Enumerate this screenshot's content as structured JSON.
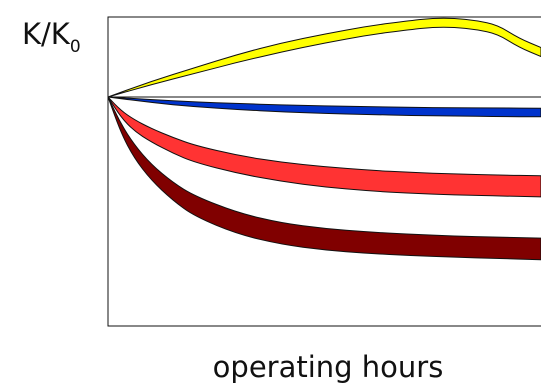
{
  "chart_data": {
    "type": "area",
    "ylabel_main": "K/K",
    "ylabel_sub": "0",
    "xlabel": "operating hours",
    "xlim": [
      0,
      100
    ],
    "ylim": [
      0,
      100
    ],
    "grid": false,
    "series": [
      {
        "color": "#ffff00",
        "x": [
          0,
          10,
          20,
          30,
          40,
          50,
          60,
          70,
          75,
          80,
          85,
          90,
          95,
          100
        ],
        "upper": [
          0,
          7,
          13,
          19,
          24,
          28,
          31.5,
          34,
          35,
          35,
          34,
          32,
          26,
          22
        ],
        "lower": [
          0,
          5.5,
          10.5,
          15.5,
          20,
          24,
          27.5,
          30,
          31,
          31,
          30,
          28,
          22,
          18
        ]
      },
      {
        "color": "#0033cc",
        "x": [
          0,
          10,
          20,
          30,
          40,
          50,
          60,
          70,
          80,
          90,
          100
        ],
        "upper": [
          0,
          -1.2,
          -2.2,
          -2.9,
          -3.5,
          -4,
          -4.3,
          -4.6,
          -4.8,
          -4.9,
          -5
        ],
        "lower": [
          0,
          -2.5,
          -4.3,
          -5.6,
          -6.6,
          -7.3,
          -7.8,
          -8.2,
          -8.5,
          -8.7,
          -8.8
        ]
      },
      {
        "color": "#ff3333",
        "x": [
          0,
          3,
          6,
          10,
          15,
          20,
          30,
          40,
          50,
          60,
          70,
          80,
          90,
          100
        ],
        "upper": [
          0,
          -6,
          -10,
          -14,
          -18,
          -21.5,
          -26,
          -29,
          -31,
          -32.5,
          -33.5,
          -34.2,
          -34.7,
          -35
        ],
        "lower": [
          0,
          -9,
          -15,
          -20,
          -25,
          -29,
          -34,
          -37.5,
          -40,
          -41.7,
          -42.8,
          -43.5,
          -44,
          -44.4
        ]
      },
      {
        "color": "#800000",
        "x": [
          0,
          3,
          6,
          10,
          15,
          20,
          30,
          40,
          50,
          60,
          70,
          80,
          90,
          100
        ],
        "upper": [
          0,
          -12,
          -21,
          -30,
          -38,
          -44,
          -51.5,
          -56,
          -58.5,
          -60,
          -61,
          -61.8,
          -62.3,
          -62.7
        ],
        "lower": [
          0,
          -16,
          -27,
          -37,
          -46,
          -53,
          -61,
          -65.5,
          -68,
          -69.5,
          -70.5,
          -71.2,
          -71.8,
          -72.3
        ]
      }
    ]
  }
}
